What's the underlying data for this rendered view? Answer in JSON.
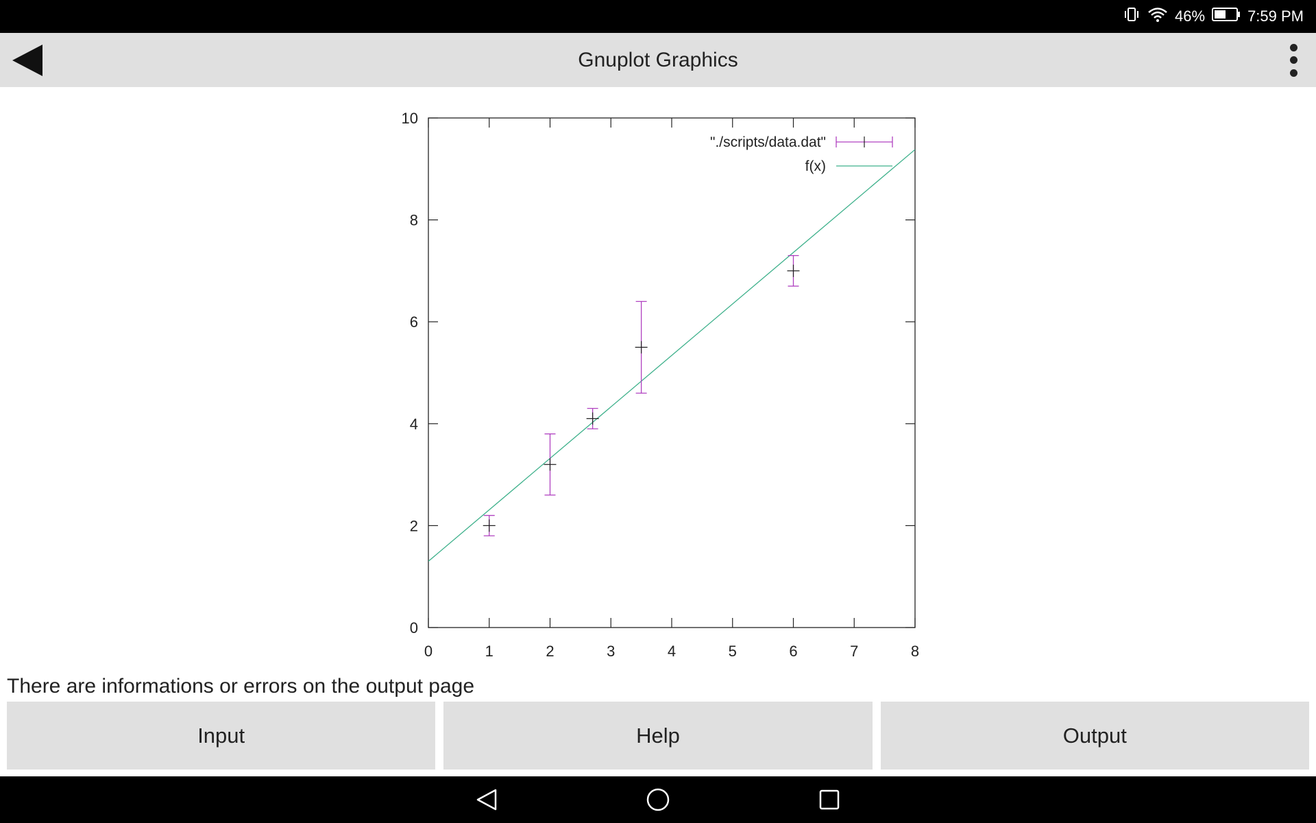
{
  "status": {
    "battery_percent": "46%",
    "time": "7:59 PM",
    "icons": [
      "vibrate-icon",
      "wifi-icon",
      "battery-icon"
    ]
  },
  "app_bar": {
    "title": "Gnuplot Graphics",
    "back_icon": "back-triangle-icon",
    "menu_icon": "overflow-menu-icon"
  },
  "chart_data": {
    "type": "scatter",
    "xlim": [
      0,
      8
    ],
    "ylim": [
      0,
      10
    ],
    "x_ticks": [
      0,
      1,
      2,
      3,
      4,
      5,
      6,
      7,
      8
    ],
    "y_ticks": [
      0,
      2,
      4,
      6,
      8,
      10
    ],
    "grid": false,
    "legend_position": "top-right",
    "series": [
      {
        "name": "\"./scripts/data.dat\"",
        "kind": "errorbars",
        "color": "#b040c0",
        "x": [
          1,
          2,
          2.7,
          3.5,
          6
        ],
        "y": [
          2.0,
          3.2,
          4.1,
          5.5,
          7.0
        ],
        "err": [
          0.2,
          0.6,
          0.2,
          0.9,
          0.3
        ]
      },
      {
        "name": "f(x)",
        "kind": "line",
        "color": "#3cb08a",
        "slope": 1.01,
        "intercept": 1.3
      }
    ]
  },
  "message": "There are informations or errors on the output page",
  "buttons": {
    "input": "Input",
    "help": "Help",
    "output": "Output"
  },
  "nav": {
    "icons": [
      "nav-back-icon",
      "nav-home-icon",
      "nav-recents-icon"
    ]
  }
}
